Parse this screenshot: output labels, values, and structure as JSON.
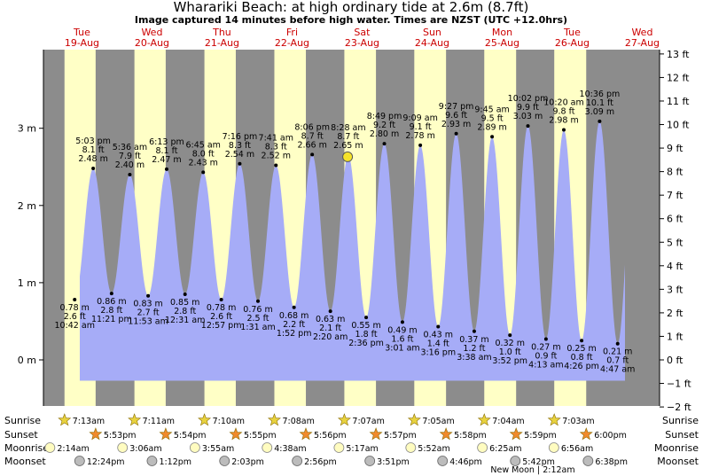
{
  "header": {
    "title": "Wharariki Beach: at high  ordinary tide at 2.6m (8.7ft)",
    "subtitle": "Image captured 14 minutes before high water. Times are NZST (UTC +12.0hrs)"
  },
  "colors": {
    "night": "#8c8c8c",
    "day": "#ffffc6",
    "water": "#a6acf7",
    "current_marker": "#f5e32a",
    "day_label": "#cc0000",
    "sunrise_star": "#e8d23e",
    "sunset_star": "#f08a2c",
    "moonrise": "#fffcc0",
    "moonset": "#bcbcbc"
  },
  "chart_data": {
    "type": "area",
    "title": "Wharariki Beach: at high  ordinary tide at 2.6m (8.7ft)",
    "days": [
      {
        "dow": "Tue",
        "date": "19-Aug"
      },
      {
        "dow": "Wed",
        "date": "20-Aug"
      },
      {
        "dow": "Thu",
        "date": "21-Aug"
      },
      {
        "dow": "Fri",
        "date": "22-Aug"
      },
      {
        "dow": "Sat",
        "date": "23-Aug"
      },
      {
        "dow": "Sun",
        "date": "24-Aug"
      },
      {
        "dow": "Mon",
        "date": "25-Aug"
      },
      {
        "dow": "Tue",
        "date": "26-Aug"
      },
      {
        "dow": "Wed",
        "date": "27-Aug"
      }
    ],
    "y_left": {
      "unit": "m",
      "range": [
        -0.3,
        3.4
      ],
      "ticks": [
        {
          "v": 0,
          "label": "0 m"
        },
        {
          "v": 1,
          "label": "1 m"
        },
        {
          "v": 2,
          "label": "2 m"
        },
        {
          "v": 3,
          "label": "3 m"
        }
      ]
    },
    "y_right": {
      "unit": "ft",
      "range_ft": [
        -2,
        13
      ],
      "ticks": [
        "−2 ft",
        "−1 ft",
        "0 ft",
        "1 ft",
        "2 ft",
        "3 ft",
        "4 ft",
        "5 ft",
        "6 ft",
        "7 ft",
        "8 ft",
        "9 ft",
        "10 ft",
        "11 ft",
        "12 ft",
        "13 ft"
      ]
    },
    "tides": [
      {
        "type": "low",
        "day": 0,
        "hours": 10.7,
        "m": 0.78,
        "m_label": "0.78 m",
        "ft_label": "2.6 ft",
        "time": "10:42 am"
      },
      {
        "type": "high",
        "day": 0,
        "hours": 17.05,
        "m": 2.48,
        "m_label": "2.48 m",
        "ft_label": "8.1 ft",
        "time": "5:03 pm"
      },
      {
        "type": "low",
        "day": 0,
        "hours": 23.35,
        "m": 0.86,
        "m_label": "0.86 m",
        "ft_label": "2.8 ft",
        "time": "11:21 pm"
      },
      {
        "type": "high",
        "day": 1,
        "hours": 5.6,
        "m": 2.4,
        "m_label": "2.40 m",
        "ft_label": "7.9 ft",
        "time": "5:36 am"
      },
      {
        "type": "low",
        "day": 1,
        "hours": 11.88,
        "m": 0.83,
        "m_label": "0.83 m",
        "ft_label": "2.7 ft",
        "time": "11:53 am"
      },
      {
        "type": "high",
        "day": 1,
        "hours": 18.22,
        "m": 2.47,
        "m_label": "2.47 m",
        "ft_label": "8.1 ft",
        "time": "6:13 pm"
      },
      {
        "type": "low",
        "day": 2,
        "hours": 0.52,
        "m": 0.85,
        "m_label": "0.85 m",
        "ft_label": "2.8 ft",
        "time": "12:31 am"
      },
      {
        "type": "high",
        "day": 2,
        "hours": 6.75,
        "m": 2.43,
        "m_label": "2.43 m",
        "ft_label": "8.0 ft",
        "time": "6:45 am"
      },
      {
        "type": "low",
        "day": 2,
        "hours": 12.95,
        "m": 0.78,
        "m_label": "0.78 m",
        "ft_label": "2.6 ft",
        "time": "12:57 pm"
      },
      {
        "type": "high",
        "day": 2,
        "hours": 19.27,
        "m": 2.54,
        "m_label": "2.54 m",
        "ft_label": "8.3 ft",
        "time": "7:16 pm"
      },
      {
        "type": "low",
        "day": 3,
        "hours": 1.52,
        "m": 0.76,
        "m_label": "0.76 m",
        "ft_label": "2.5 ft",
        "time": "1:31 am"
      },
      {
        "type": "high",
        "day": 3,
        "hours": 7.68,
        "m": 2.52,
        "m_label": "2.52 m",
        "ft_label": "8.3 ft",
        "time": "7:41 am"
      },
      {
        "type": "low",
        "day": 3,
        "hours": 13.87,
        "m": 0.68,
        "m_label": "0.68 m",
        "ft_label": "2.2 ft",
        "time": "1:52 pm"
      },
      {
        "type": "high",
        "day": 3,
        "hours": 20.1,
        "m": 2.66,
        "m_label": "2.66 m",
        "ft_label": "8.7 ft",
        "time": "8:06 pm"
      },
      {
        "type": "low",
        "day": 4,
        "hours": 2.33,
        "m": 0.63,
        "m_label": "0.63 m",
        "ft_label": "2.1 ft",
        "time": "2:20 am"
      },
      {
        "type": "high",
        "day": 4,
        "hours": 8.47,
        "m": 2.65,
        "m_label": "2.65 m",
        "ft_label": "8.7 ft",
        "time": "8:28 am"
      },
      {
        "type": "low",
        "day": 4,
        "hours": 14.6,
        "m": 0.55,
        "m_label": "0.55 m",
        "ft_label": "1.8 ft",
        "time": "2:36 pm"
      },
      {
        "type": "high",
        "day": 4,
        "hours": 20.82,
        "m": 2.8,
        "m_label": "2.80 m",
        "ft_label": "9.2 ft",
        "time": "8:49 pm"
      },
      {
        "type": "low",
        "day": 5,
        "hours": 3.02,
        "m": 0.49,
        "m_label": "0.49 m",
        "ft_label": "1.6 ft",
        "time": "3:01 am"
      },
      {
        "type": "high",
        "day": 5,
        "hours": 9.15,
        "m": 2.78,
        "m_label": "2.78 m",
        "ft_label": "9.1 ft",
        "time": "9:09 am"
      },
      {
        "type": "low",
        "day": 5,
        "hours": 15.27,
        "m": 0.43,
        "m_label": "0.43 m",
        "ft_label": "1.4 ft",
        "time": "3:16 pm"
      },
      {
        "type": "high",
        "day": 5,
        "hours": 21.45,
        "m": 2.93,
        "m_label": "2.93 m",
        "ft_label": "9.6 ft",
        "time": "9:27 pm"
      },
      {
        "type": "low",
        "day": 6,
        "hours": 3.63,
        "m": 0.37,
        "m_label": "0.37 m",
        "ft_label": "1.2 ft",
        "time": "3:38 am"
      },
      {
        "type": "high",
        "day": 6,
        "hours": 9.75,
        "m": 2.89,
        "m_label": "2.89 m",
        "ft_label": "9.5 ft",
        "time": "9:45 am"
      },
      {
        "type": "low",
        "day": 6,
        "hours": 15.87,
        "m": 0.32,
        "m_label": "0.32 m",
        "ft_label": "1.0 ft",
        "time": "3:52 pm"
      },
      {
        "type": "high",
        "day": 6,
        "hours": 22.03,
        "m": 3.03,
        "m_label": "3.03 m",
        "ft_label": "9.9 ft",
        "time": "10:02 pm"
      },
      {
        "type": "low",
        "day": 7,
        "hours": 4.22,
        "m": 0.27,
        "m_label": "0.27 m",
        "ft_label": "0.9 ft",
        "time": "4:13 am"
      },
      {
        "type": "high",
        "day": 7,
        "hours": 10.33,
        "m": 2.98,
        "m_label": "2.98 m",
        "ft_label": "9.8 ft",
        "time": "10:20 am"
      },
      {
        "type": "low",
        "day": 7,
        "hours": 16.43,
        "m": 0.25,
        "m_label": "0.25 m",
        "ft_label": "0.8 ft",
        "time": "4:26 pm"
      },
      {
        "type": "high",
        "day": 7,
        "hours": 22.6,
        "m": 3.09,
        "m_label": "3.09 m",
        "ft_label": "10.1 ft",
        "time": "10:36 pm"
      },
      {
        "type": "low",
        "day": 8,
        "hours": 4.78,
        "m": 0.21,
        "m_label": "0.21 m",
        "ft_label": "0.7 ft",
        "time": "4:47 am"
      }
    ],
    "current": {
      "day": 4,
      "hours": 8.23,
      "m": 2.63
    },
    "sun": [
      {
        "rise": "7:13am",
        "set": "5:53pm"
      },
      {
        "rise": "7:11am",
        "set": "5:54pm"
      },
      {
        "rise": "7:10am",
        "set": "5:55pm"
      },
      {
        "rise": "7:08am",
        "set": "5:56pm"
      },
      {
        "rise": "7:07am",
        "set": "5:57pm"
      },
      {
        "rise": "7:05am",
        "set": "5:58pm"
      },
      {
        "rise": "7:04am",
        "set": "5:59pm"
      },
      {
        "rise": "7:03am",
        "set": "6:00pm"
      }
    ],
    "moonrise": [
      "2:14am",
      "3:06am",
      "3:55am",
      "4:38am",
      "5:17am",
      "5:52am",
      "6:25am",
      "6:56am"
    ],
    "moonset": [
      "12:24pm",
      "1:12pm",
      "2:03pm",
      "2:56pm",
      "3:51pm",
      "4:46pm",
      "5:42pm",
      "6:38pm"
    ],
    "moon_phase_note": "New Moon | 2:12am"
  },
  "rows": {
    "sunrise": "Sunrise",
    "sunset": "Sunset",
    "moonrise": "Moonrise",
    "moonset": "Moonset"
  }
}
